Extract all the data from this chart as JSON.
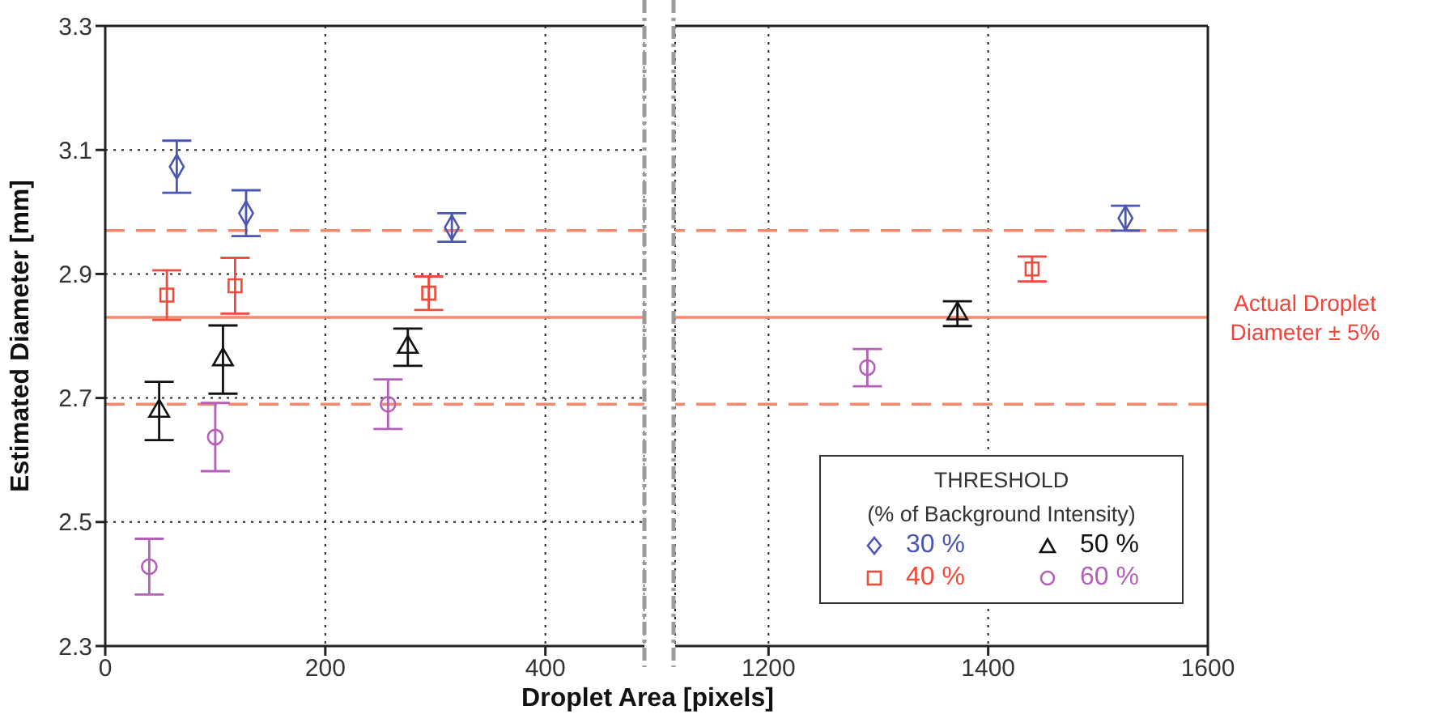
{
  "chart_data": [
    {
      "type": "scatter",
      "xlabel": "Droplet Area [pixels]",
      "ylabel": "Estimated Diameter [mm]",
      "xlim": [
        0,
        490
      ],
      "xticks": [
        0,
        200,
        400
      ],
      "ylim": [
        2.3,
        3.3
      ],
      "yticks": [
        2.3,
        2.5,
        2.7,
        2.9,
        3.1,
        3.3
      ],
      "grid": true,
      "legend": false,
      "series": [
        {
          "color": "#4b56b2",
          "marker": "diamond",
          "x": [
            65,
            128,
            315
          ],
          "values": [
            3.073,
            2.998,
            2.975
          ],
          "errors": [
            0.042,
            0.037,
            0.023
          ]
        },
        {
          "color": "#f04a3a",
          "marker": "square",
          "x": [
            56,
            118,
            294
          ],
          "values": [
            2.866,
            2.881,
            2.869
          ],
          "errors": [
            0.04,
            0.045,
            0.027
          ]
        },
        {
          "color": "#111111",
          "marker": "triangle",
          "x": [
            49,
            107,
            275
          ],
          "values": [
            2.679,
            2.762,
            2.782
          ],
          "errors": [
            0.047,
            0.055,
            0.03
          ]
        },
        {
          "color": "#b45fb8",
          "marker": "circle",
          "x": [
            40,
            100,
            257
          ],
          "values": [
            2.428,
            2.637,
            2.69
          ],
          "errors": [
            0.045,
            0.055,
            0.04
          ]
        }
      ],
      "ref_lines": [
        {
          "axis": "y",
          "value": 2.97,
          "color": "#f4876b",
          "line_style": "dashed"
        },
        {
          "axis": "y",
          "value": 2.83,
          "color": "#f4876b",
          "line_style": "solid"
        },
        {
          "axis": "y",
          "value": 2.69,
          "color": "#f4876b",
          "line_style": "dashed"
        }
      ]
    },
    {
      "type": "scatter",
      "xlim": [
        1115,
        1600
      ],
      "xticks": [
        1200,
        1400,
        1600
      ],
      "ylim": [
        2.3,
        3.3
      ],
      "yticks": [
        2.3,
        2.5,
        2.7,
        2.9,
        3.1,
        3.3
      ],
      "grid": true,
      "tick_labels": "x",
      "legend": "bottom right",
      "legend_title": "THRESHOLD\n(% of Background Intensity)",
      "series": [
        {
          "name": "30 %",
          "color": "#4b56b2",
          "marker": "diamond",
          "x": [
            1525
          ],
          "values": [
            2.99
          ],
          "errors": [
            0.02
          ]
        },
        {
          "name": "40 %",
          "color": "#f04a3a",
          "marker": "square",
          "x": [
            1440
          ],
          "values": [
            2.908
          ],
          "errors": [
            0.02
          ]
        },
        {
          "name": "50 %",
          "color": "#111111",
          "marker": "triangle",
          "x": [
            1372
          ],
          "values": [
            2.836
          ],
          "errors": [
            0.02
          ]
        },
        {
          "name": "60 %",
          "color": "#b45fb8",
          "marker": "circle",
          "x": [
            1290
          ],
          "values": [
            2.749
          ],
          "errors": [
            0.03
          ]
        }
      ],
      "ref_lines": [
        {
          "axis": "y",
          "value": 2.97,
          "color": "#f4876b",
          "line_style": "dashed"
        },
        {
          "axis": "y",
          "value": 2.83,
          "color": "#f4876b",
          "line_style": "solid",
          "label": "Actual Droplet Diameter ± 5%"
        },
        {
          "axis": "y",
          "value": 2.69,
          "color": "#f4876b",
          "line_style": "dashed"
        }
      ]
    }
  ]
}
